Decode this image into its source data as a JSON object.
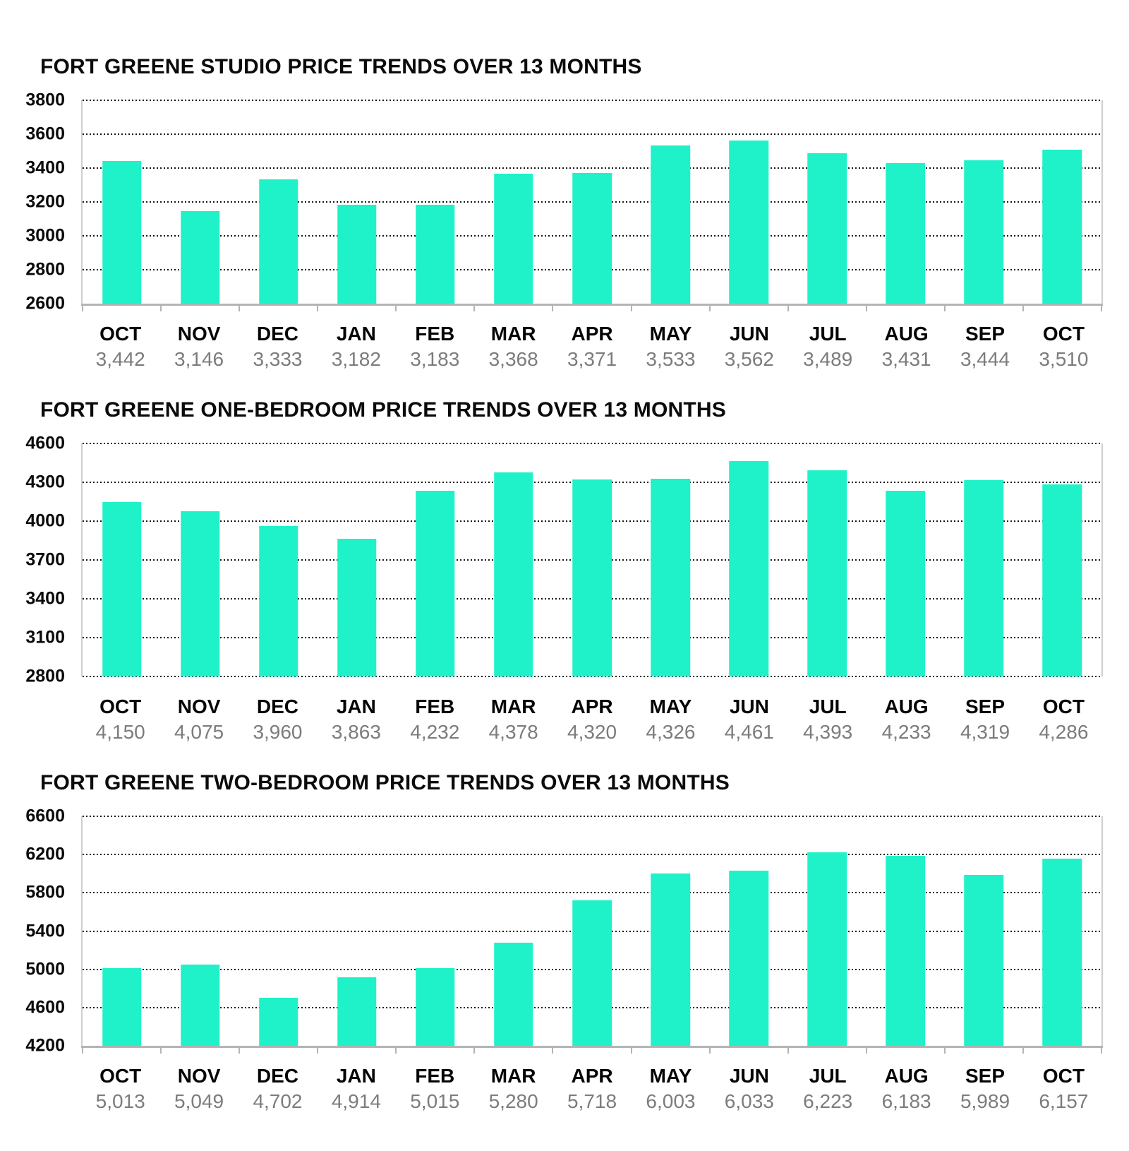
{
  "colors": {
    "bar": "#1ff2c8",
    "gridline": "#161616",
    "axis": "#b4b4b4",
    "value_label": "#7c7c7c",
    "title": "#0b0b0b"
  },
  "chart_data": [
    {
      "type": "bar",
      "title": "FORT GREENE STUDIO PRICE TRENDS OVER 13 MONTHS",
      "categories": [
        "OCT",
        "NOV",
        "DEC",
        "JAN",
        "FEB",
        "MAR",
        "APR",
        "MAY",
        "JUN",
        "JUL",
        "AUG",
        "SEP",
        "OCT"
      ],
      "values": [
        3442,
        3146,
        3333,
        3182,
        3183,
        3368,
        3371,
        3533,
        3562,
        3489,
        3431,
        3444,
        3510
      ],
      "value_labels": [
        "3,442",
        "3,146",
        "3,333",
        "3,182",
        "3,183",
        "3,368",
        "3,371",
        "3,533",
        "3,562",
        "3,489",
        "3,431",
        "3,444",
        "3,510"
      ],
      "yticks": [
        3800,
        3600,
        3400,
        3200,
        3000,
        2800,
        2600
      ],
      "ylim": [
        2600,
        3800
      ],
      "xlabel": "",
      "ylabel": "",
      "grid": "dotted-horizontal",
      "legend": "none",
      "baseline_style": "solid"
    },
    {
      "type": "bar",
      "title": "FORT GREENE ONE-BEDROOM PRICE TRENDS OVER 13 MONTHS",
      "categories": [
        "OCT",
        "NOV",
        "DEC",
        "JAN",
        "FEB",
        "MAR",
        "APR",
        "MAY",
        "JUN",
        "JUL",
        "AUG",
        "SEP",
        "OCT"
      ],
      "values": [
        4150,
        4075,
        3960,
        3863,
        4232,
        4378,
        4320,
        4326,
        4461,
        4393,
        4233,
        4319,
        4286
      ],
      "value_labels": [
        "4,150",
        "4,075",
        "3,960",
        "3,863",
        "4,232",
        "4,378",
        "4,320",
        "4,326",
        "4,461",
        "4,393",
        "4,233",
        "4,319",
        "4,286"
      ],
      "yticks": [
        4600,
        4300,
        4000,
        3700,
        3400,
        3100,
        2800
      ],
      "ylim": [
        2800,
        4600
      ],
      "xlabel": "",
      "ylabel": "",
      "grid": "dotted-horizontal",
      "legend": "none",
      "baseline_style": "dotted"
    },
    {
      "type": "bar",
      "title": "FORT GREENE TWO-BEDROOM PRICE TRENDS OVER 13 MONTHS",
      "categories": [
        "OCT",
        "NOV",
        "DEC",
        "JAN",
        "FEB",
        "MAR",
        "APR",
        "MAY",
        "JUN",
        "JUL",
        "AUG",
        "SEP",
        "OCT"
      ],
      "values": [
        5013,
        5049,
        4702,
        4914,
        5015,
        5280,
        5718,
        6003,
        6033,
        6223,
        6183,
        5989,
        6157
      ],
      "value_labels": [
        "5,013",
        "5,049",
        "4,702",
        "4,914",
        "5,015",
        "5,280",
        "5,718",
        "6,003",
        "6,033",
        "6,223",
        "6,183",
        "5,989",
        "6,157"
      ],
      "yticks": [
        6600,
        6200,
        5800,
        5400,
        5000,
        4600,
        4200
      ],
      "ylim": [
        4200,
        6600
      ],
      "xlabel": "",
      "ylabel": "",
      "grid": "dotted-horizontal",
      "legend": "none",
      "baseline_style": "solid"
    }
  ]
}
